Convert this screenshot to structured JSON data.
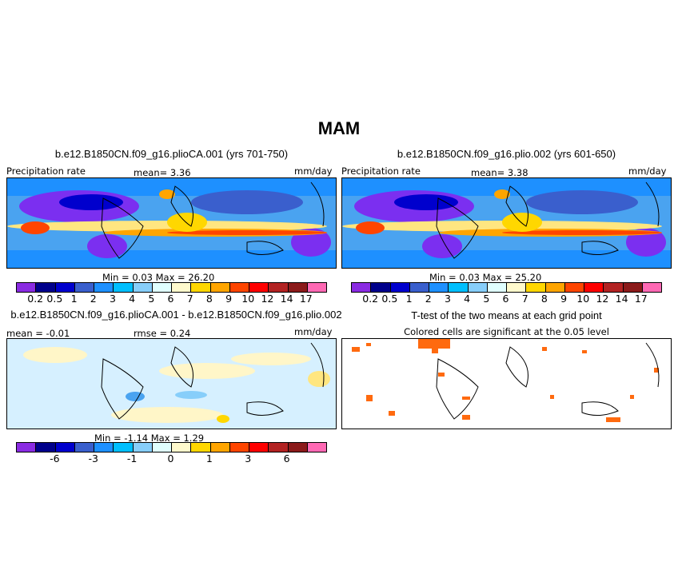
{
  "figure": {
    "season_title": "MAM"
  },
  "panels": {
    "top_left": {
      "title": "b.e12.B1850CN.f09_g16.plioCA.001 (yrs 701-750)",
      "left_label": "Precipitation rate",
      "mean_text": "mean=   3.36",
      "units": "mm/day",
      "minmax_text": "Min =    0.03  Max =   26.20"
    },
    "top_right": {
      "title": "b.e12.B1850CN.f09_g16.plio.002 (yrs 601-650)",
      "left_label": "Precipitation rate",
      "mean_text": "mean=   3.38",
      "units": "mm/day",
      "minmax_text": "Min =    0.03  Max =   25.20"
    },
    "bottom_left": {
      "title": "b.e12.B1850CN.f09_g16.plioCA.001 - b.e12.B1850CN.f09_g16.plio.002",
      "mean_text": "mean =  -0.01",
      "rmse_text": "rmse =   0.24",
      "units": "mm/day",
      "minmax_text": "Min =   -1.14  Max =    1.29"
    },
    "bottom_right": {
      "title": "T-test of the two means at each grid point",
      "subtitle": "Colored cells are significant at the 0.05 level"
    }
  },
  "chart_data": [
    {
      "type": "heatmap",
      "title": "b.e12.B1850CN.f09_g16.plioCA.001 (yrs 701-750)",
      "variable": "Precipitation rate",
      "units": "mm/day",
      "mean": 3.36,
      "min": 0.03,
      "max": 26.2,
      "colorbar_levels": [
        "0.2",
        "0.5",
        "1",
        "2",
        "3",
        "4",
        "5",
        "6",
        "7",
        "8",
        "9",
        "10",
        "12",
        "14",
        "17"
      ]
    },
    {
      "type": "heatmap",
      "title": "b.e12.B1850CN.f09_g16.plio.002 (yrs 601-650)",
      "variable": "Precipitation rate",
      "units": "mm/day",
      "mean": 3.38,
      "min": 0.03,
      "max": 25.2,
      "colorbar_levels": [
        "0.2",
        "0.5",
        "1",
        "2",
        "3",
        "4",
        "5",
        "6",
        "7",
        "8",
        "9",
        "10",
        "12",
        "14",
        "17"
      ]
    },
    {
      "type": "heatmap",
      "title": "b.e12.B1850CN.f09_g16.plioCA.001 - b.e12.B1850CN.f09_g16.plio.002",
      "units": "mm/day",
      "mean": -0.01,
      "rmse": 0.24,
      "min": -1.14,
      "max": 1.29,
      "colorbar_levels": [
        "-6",
        "-3",
        "-1",
        "0",
        "1",
        "3",
        "6"
      ]
    },
    {
      "type": "heatmap",
      "title": "T-test of the two means at each grid point",
      "subtitle": "Colored cells are significant at the 0.05 level"
    }
  ],
  "colors": {
    "precip_scale": [
      "#8a2be2",
      "#00008b",
      "#0000cd",
      "#3a5fcd",
      "#1e90ff",
      "#00bfff",
      "#87cefa",
      "#e0ffff",
      "#fffacd",
      "#ffd700",
      "#ffa500",
      "#ff4500",
      "#ff0000",
      "#b22222",
      "#8b1a1a",
      "#ff69b4"
    ],
    "diff_scale": [
      "#8a2be2",
      "#00008b",
      "#0000cd",
      "#3a5fcd",
      "#1e90ff",
      "#00bfff",
      "#87cefa",
      "#e0ffff",
      "#fffacd",
      "#ffd700",
      "#ffa500",
      "#ff4500",
      "#ff0000",
      "#b22222",
      "#8b1a1a",
      "#ff69b4"
    ],
    "significant_cell": "#ff6a0f"
  }
}
